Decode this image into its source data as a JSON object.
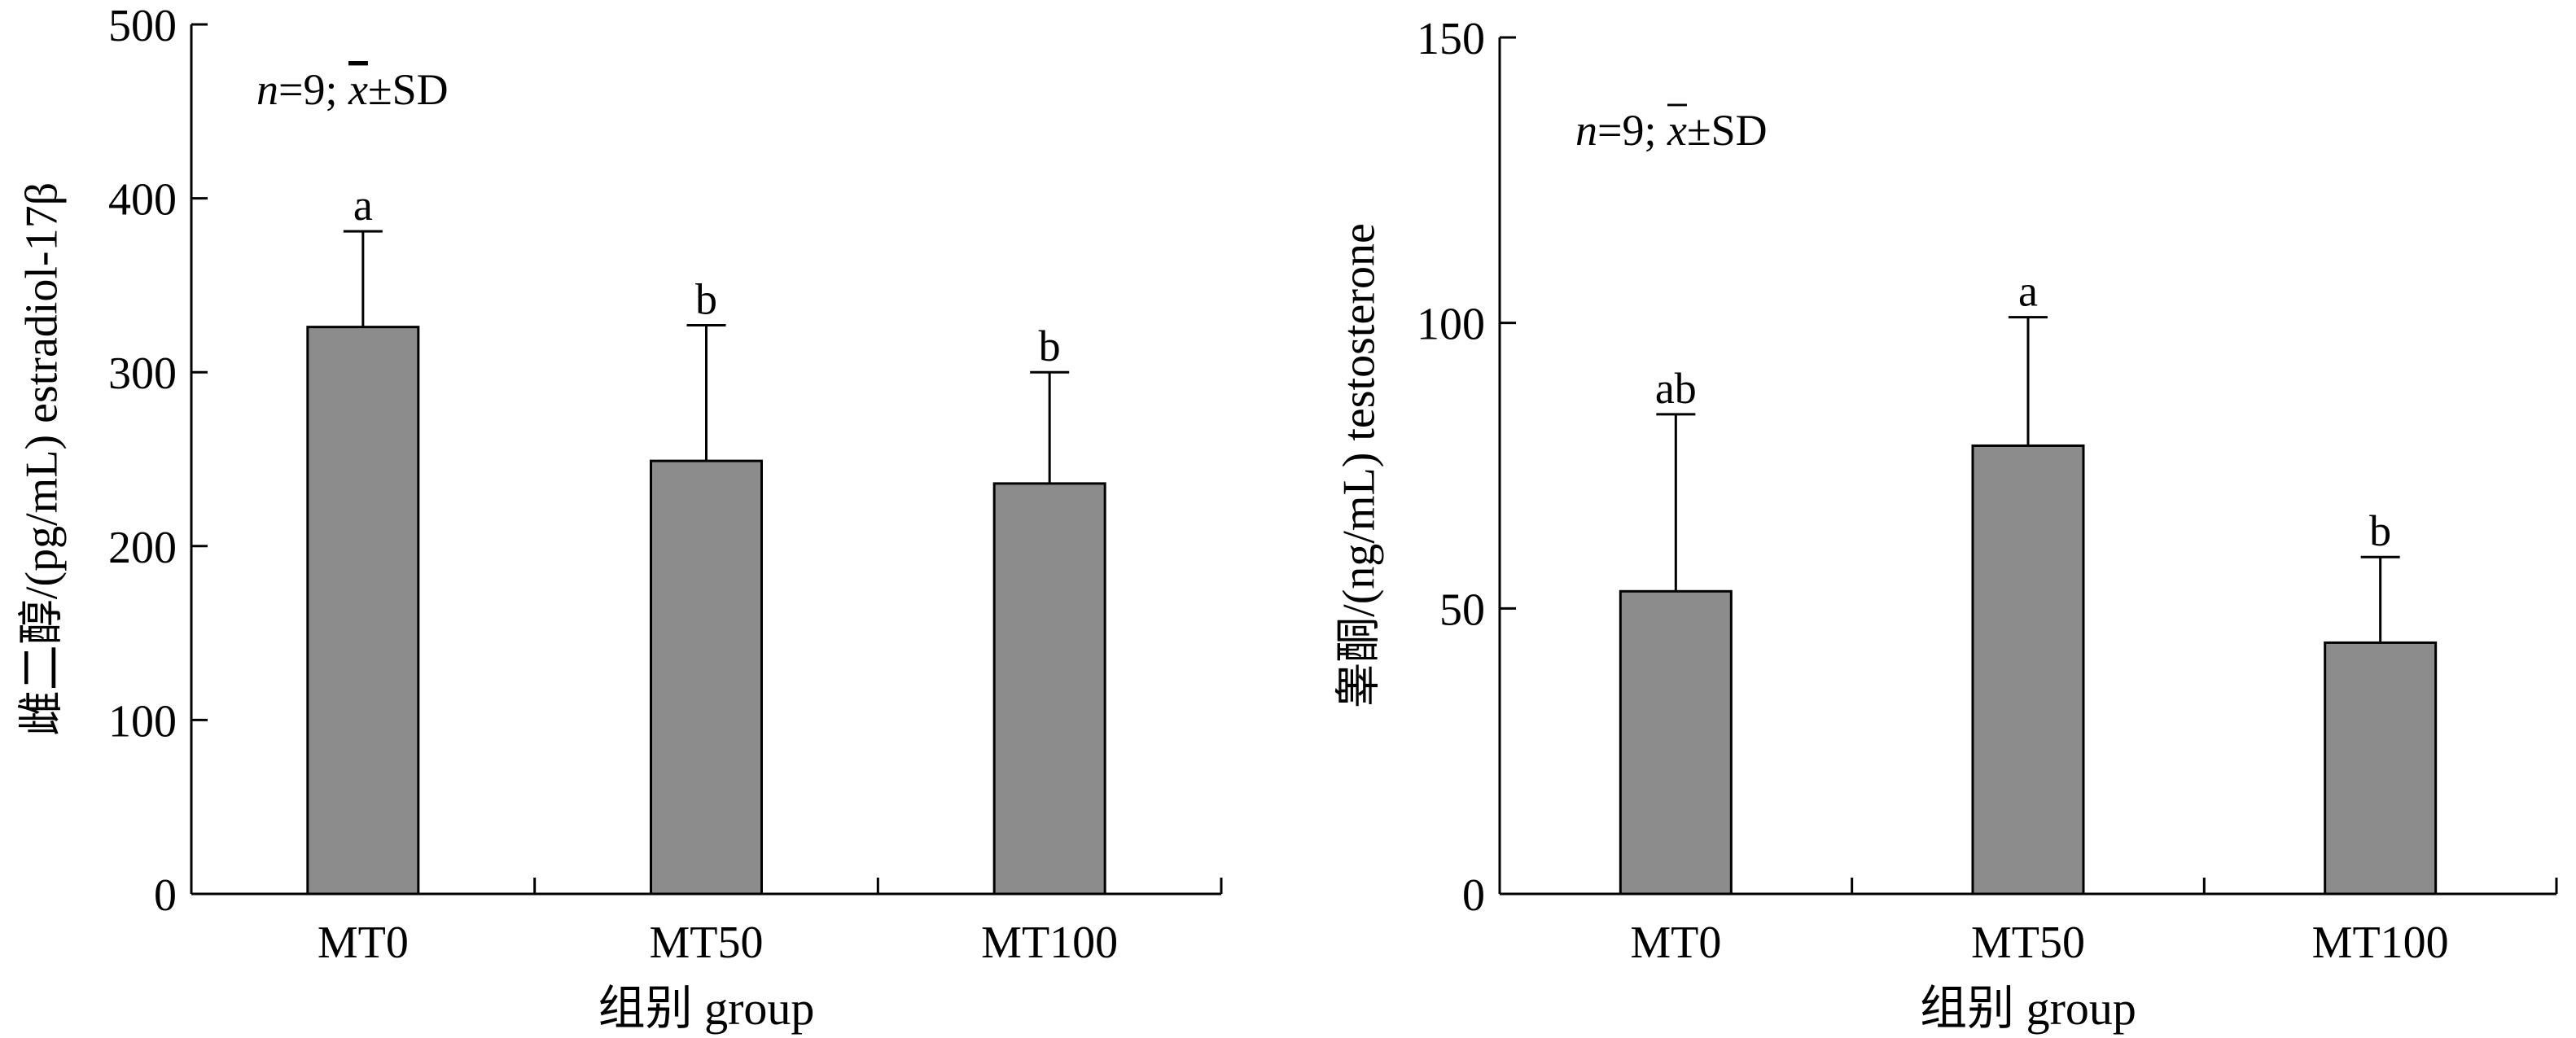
{
  "chart_data": [
    {
      "type": "bar",
      "categories": [
        "MT0",
        "MT50",
        "MT100"
      ],
      "values": [
        326,
        249,
        236
      ],
      "error_plus": [
        55,
        78,
        64
      ],
      "significance_letters": [
        "a",
        "b",
        "b"
      ],
      "annotation": {
        "n_part": "n",
        "rest_part": "=9; ",
        "mean_symbol": "x",
        "pm_sd": "±SD"
      },
      "xlabel": "组别 group",
      "ylabel": "雌二醇/(pg/mL) estradiol-17β",
      "ylim": [
        0,
        500
      ],
      "yticks": [
        0,
        100,
        200,
        300,
        400,
        500
      ],
      "bar_color": "#8c8c8c",
      "grid": false
    },
    {
      "type": "bar",
      "categories": [
        "MT0",
        "MT50",
        "MT100"
      ],
      "values": [
        53,
        78.5,
        44
      ],
      "error_plus": [
        31,
        22.5,
        15
      ],
      "significance_letters": [
        "ab",
        "a",
        "b"
      ],
      "annotation": {
        "n_part": "n",
        "rest_part": "=9; ",
        "mean_symbol": "x",
        "pm_sd": "±SD"
      },
      "xlabel": "组别 group",
      "ylabel": "睾酮/(ng/mL) testosterone",
      "ylim": [
        0,
        150
      ],
      "yticks": [
        0,
        50,
        100,
        150
      ],
      "bar_color": "#8c8c8c",
      "grid": false
    }
  ]
}
